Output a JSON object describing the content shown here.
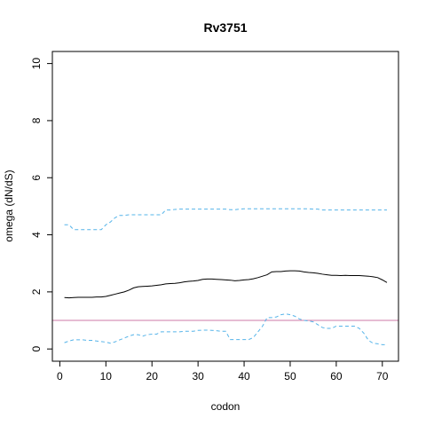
{
  "chart_data": {
    "type": "line",
    "title": "Rv3751",
    "xlabel": "codon",
    "ylabel": "omega (dN/dS)",
    "xlim": [
      0,
      72
    ],
    "ylim": [
      0,
      10
    ],
    "xticks": [
      0,
      10,
      20,
      30,
      40,
      50,
      60,
      70
    ],
    "yticks": [
      0,
      2,
      4,
      6,
      8,
      10
    ],
    "grid": false,
    "colors": {
      "mean": "#000000",
      "ci": "#56b4e9",
      "reference": "#cc79a7"
    },
    "reference_line": {
      "y": 1
    },
    "series": [
      {
        "role": "mean",
        "style": "solid",
        "x": [
          1,
          2,
          3,
          4,
          5,
          6,
          7,
          8,
          9,
          10,
          11,
          12,
          13,
          14,
          15,
          16,
          17,
          18,
          19,
          20,
          21,
          22,
          23,
          24,
          25,
          26,
          27,
          28,
          29,
          30,
          31,
          32,
          33,
          34,
          35,
          36,
          37,
          38,
          39,
          40,
          41,
          42,
          43,
          44,
          45,
          46,
          47,
          48,
          49,
          50,
          51,
          52,
          53,
          54,
          55,
          56,
          57,
          58,
          59,
          60,
          61,
          62,
          63,
          64,
          65,
          66,
          67,
          68,
          69,
          70,
          71
        ],
        "values": [
          1.8,
          1.79,
          1.8,
          1.81,
          1.81,
          1.81,
          1.81,
          1.82,
          1.82,
          1.84,
          1.88,
          1.92,
          1.96,
          2.0,
          2.06,
          2.14,
          2.18,
          2.19,
          2.2,
          2.21,
          2.23,
          2.25,
          2.28,
          2.29,
          2.3,
          2.32,
          2.35,
          2.37,
          2.38,
          2.4,
          2.44,
          2.45,
          2.45,
          2.44,
          2.43,
          2.42,
          2.41,
          2.39,
          2.4,
          2.42,
          2.43,
          2.46,
          2.5,
          2.55,
          2.6,
          2.7,
          2.71,
          2.71,
          2.73,
          2.74,
          2.74,
          2.73,
          2.7,
          2.68,
          2.67,
          2.65,
          2.62,
          2.6,
          2.58,
          2.58,
          2.57,
          2.58,
          2.57,
          2.57,
          2.57,
          2.56,
          2.55,
          2.53,
          2.5,
          2.42,
          2.33
        ]
      },
      {
        "role": "upper-ci",
        "style": "dashed",
        "x": [
          1,
          2,
          3,
          4,
          5,
          6,
          7,
          8,
          9,
          10,
          11,
          12,
          13,
          14,
          15,
          16,
          17,
          18,
          19,
          20,
          21,
          22,
          23,
          24,
          25,
          26,
          27,
          28,
          29,
          30,
          31,
          32,
          33,
          34,
          35,
          36,
          37,
          38,
          39,
          40,
          41,
          42,
          43,
          44,
          45,
          46,
          47,
          48,
          49,
          50,
          51,
          52,
          53,
          54,
          55,
          56,
          57,
          58,
          59,
          60,
          61,
          62,
          63,
          64,
          65,
          66,
          67,
          68,
          69,
          70,
          71
        ],
        "values": [
          4.35,
          4.35,
          4.18,
          4.18,
          4.18,
          4.18,
          4.18,
          4.18,
          4.18,
          4.35,
          4.45,
          4.6,
          4.68,
          4.68,
          4.7,
          4.7,
          4.7,
          4.7,
          4.7,
          4.7,
          4.7,
          4.7,
          4.87,
          4.87,
          4.89,
          4.9,
          4.9,
          4.9,
          4.9,
          4.9,
          4.9,
          4.9,
          4.9,
          4.9,
          4.9,
          4.9,
          4.88,
          4.88,
          4.9,
          4.91,
          4.91,
          4.91,
          4.91,
          4.91,
          4.91,
          4.91,
          4.91,
          4.91,
          4.91,
          4.91,
          4.91,
          4.91,
          4.91,
          4.91,
          4.9,
          4.9,
          4.87,
          4.87,
          4.87,
          4.87,
          4.87,
          4.87,
          4.87,
          4.87,
          4.87,
          4.87,
          4.87,
          4.87,
          4.87,
          4.87,
          4.87
        ]
      },
      {
        "role": "lower-ci",
        "style": "dashed",
        "x": [
          1,
          2,
          3,
          4,
          5,
          6,
          7,
          8,
          9,
          10,
          11,
          12,
          13,
          14,
          15,
          16,
          17,
          18,
          19,
          20,
          21,
          22,
          23,
          24,
          25,
          26,
          27,
          28,
          29,
          30,
          31,
          32,
          33,
          34,
          35,
          36,
          37,
          38,
          39,
          40,
          41,
          42,
          43,
          44,
          45,
          46,
          47,
          48,
          49,
          50,
          51,
          52,
          53,
          54,
          55,
          56,
          57,
          58,
          59,
          60,
          61,
          62,
          63,
          64,
          65,
          66,
          67,
          68,
          69,
          70,
          71
        ],
        "values": [
          0.22,
          0.28,
          0.32,
          0.32,
          0.32,
          0.3,
          0.3,
          0.28,
          0.26,
          0.24,
          0.2,
          0.25,
          0.32,
          0.38,
          0.45,
          0.5,
          0.5,
          0.45,
          0.5,
          0.52,
          0.52,
          0.6,
          0.6,
          0.6,
          0.6,
          0.6,
          0.62,
          0.62,
          0.62,
          0.65,
          0.66,
          0.66,
          0.65,
          0.64,
          0.62,
          0.62,
          0.33,
          0.33,
          0.33,
          0.33,
          0.33,
          0.4,
          0.6,
          0.8,
          1.1,
          1.1,
          1.12,
          1.2,
          1.23,
          1.2,
          1.15,
          1.05,
          1.0,
          0.98,
          0.95,
          0.85,
          0.75,
          0.72,
          0.72,
          0.8,
          0.8,
          0.8,
          0.8,
          0.8,
          0.72,
          0.55,
          0.3,
          0.2,
          0.18,
          0.15,
          0.15
        ]
      }
    ]
  }
}
